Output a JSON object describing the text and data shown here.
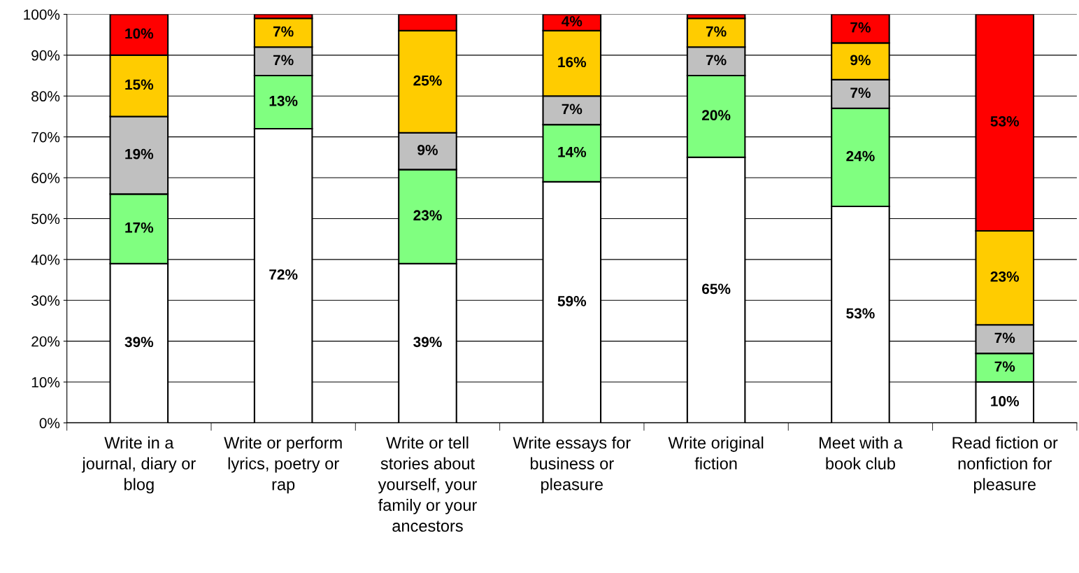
{
  "chart_data": {
    "type": "bar",
    "stacked": true,
    "categories": [
      "Write in a\njournal, diary or\nblog",
      "Write or perform\nlyrics, poetry or\nrap",
      "Write or tell\nstories about\nyourself, your\nfamily or your\nancestors",
      "Write essays for\nbusiness or\npleasure",
      "Write original\nfiction",
      "Meet with a\nbook club",
      "Read fiction or\nnonfiction for\npleasure"
    ],
    "series": [
      {
        "color": "#ffffff",
        "values": [
          39,
          72,
          39,
          59,
          65,
          53,
          10
        ],
        "value_labels": [
          "39%",
          "72%",
          "39%",
          "59%",
          "65%",
          "53%",
          "10%"
        ]
      },
      {
        "color": "#80ff80",
        "values": [
          17,
          13,
          23,
          14,
          20,
          24,
          7
        ],
        "value_labels": [
          "17%",
          "13%",
          "23%",
          "14%",
          "20%",
          "24%",
          "7%"
        ]
      },
      {
        "color": "#c0c0c0",
        "values": [
          19,
          7,
          9,
          7,
          7,
          7,
          7
        ],
        "value_labels": [
          "19%",
          "7%",
          "9%",
          "7%",
          "7%",
          "7%",
          "7%"
        ]
      },
      {
        "color": "#ffcc00",
        "values": [
          15,
          7,
          25,
          16,
          7,
          9,
          23
        ],
        "value_labels": [
          "15%",
          "7%",
          "25%",
          "16%",
          "7%",
          "9%",
          "23%"
        ]
      },
      {
        "color": "#ff0000",
        "values": [
          10,
          1,
          4,
          4,
          1,
          7,
          53
        ],
        "value_labels": [
          "10%",
          null,
          null,
          "4%",
          null,
          "7%",
          "53%"
        ]
      }
    ],
    "ylim": [
      0,
      100
    ],
    "yticks": [
      {
        "value": 0,
        "label": "0%"
      },
      {
        "value": 10,
        "label": "10%"
      },
      {
        "value": 20,
        "label": "20%"
      },
      {
        "value": 30,
        "label": "30%"
      },
      {
        "value": 40,
        "label": "40%"
      },
      {
        "value": 50,
        "label": "50%"
      },
      {
        "value": 60,
        "label": "60%"
      },
      {
        "value": 70,
        "label": "70%"
      },
      {
        "value": 80,
        "label": "80%"
      },
      {
        "value": 90,
        "label": "90%"
      },
      {
        "value": 100,
        "label": "100%"
      }
    ],
    "grid": "y"
  }
}
